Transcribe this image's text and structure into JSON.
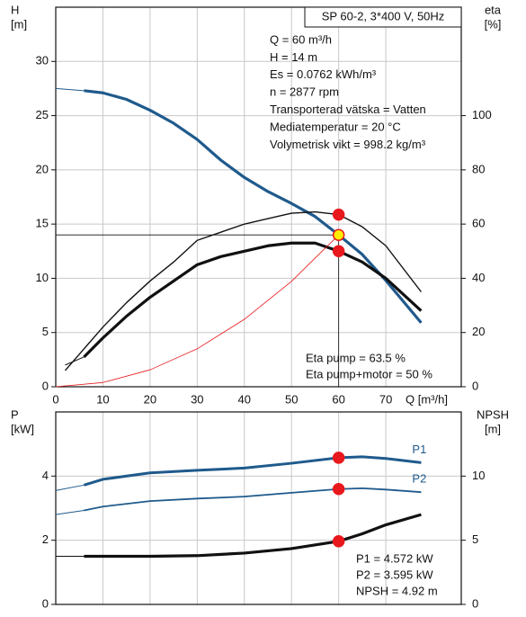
{
  "chart_data": [
    {
      "type": "line",
      "box_title": "SP 60-2, 3*400 V, 50Hz",
      "y_label": [
        "H",
        "[m]"
      ],
      "y2_label": [
        "eta",
        "[%]"
      ],
      "x_label": "Q [m³/h]",
      "xlim": [
        0,
        86
      ],
      "xticks": [
        0,
        10,
        20,
        30,
        40,
        50,
        60,
        70
      ],
      "ylim": [
        0,
        35
      ],
      "yticks": [
        0,
        5,
        10,
        15,
        20,
        25,
        30
      ],
      "y2lim": [
        0,
        140
      ],
      "y2ticks": [
        0,
        20,
        40,
        60,
        80,
        100
      ],
      "grid": true,
      "marker_x": 60,
      "annotations": [
        "Q = 60 m³/h",
        "H = 14 m",
        "Es = 0.0762 kWh/m³",
        "n = 2877 rpm",
        "Transporterad vätska = Vatten",
        "Mediatemperatur = 20 °C",
        "Volymetrisk vikt = 998.2 kg/m³"
      ],
      "annotations_lower": [
        "Eta pump = 63.5 %",
        "Eta pump+motor = 50 %"
      ],
      "series": [
        {
          "color": "#1f5a8c",
          "line_width": 1,
          "x": [
            0,
            6
          ],
          "values": [
            27.5,
            27.3
          ]
        },
        {
          "color": "#1f5a8c",
          "line_width": 3.2,
          "marker_color": "#ffee00",
          "x": [
            6,
            10,
            15,
            20,
            25,
            30,
            35,
            40,
            45,
            50,
            55,
            60,
            65,
            70,
            77.5
          ],
          "values": [
            27.3,
            27.1,
            26.5,
            25.5,
            24.3,
            22.8,
            20.9,
            19.3,
            18.0,
            16.9,
            15.7,
            14.0,
            12.2,
            9.8,
            5.9
          ]
        },
        {
          "color": "#111111",
          "line_width": 1.4,
          "axis": "y2",
          "marker_color": "#e8181c",
          "x": [
            2,
            6,
            10,
            15,
            20,
            25,
            30,
            35,
            40,
            45,
            50,
            55,
            60,
            65,
            70,
            77.5
          ],
          "values": [
            6,
            14,
            22,
            31,
            39,
            46,
            54,
            57,
            60,
            62,
            64,
            64.5,
            63.5,
            59,
            52,
            35
          ]
        },
        {
          "color": "#111111",
          "line_width": 1,
          "axis": "y2",
          "x": [
            2,
            6
          ],
          "values": [
            8,
            11
          ]
        },
        {
          "color": "#111111",
          "line_width": 3.2,
          "axis": "y2",
          "marker_color": "#e8181c",
          "x": [
            6,
            10,
            15,
            20,
            25,
            30,
            35,
            40,
            45,
            50,
            55,
            60,
            65,
            70,
            77.5
          ],
          "values": [
            11,
            18,
            26,
            33,
            39,
            45,
            48,
            50,
            52,
            53,
            53,
            50,
            46,
            40,
            28
          ]
        },
        {
          "color": "#e8181c",
          "line_width": 0.8,
          "x": [
            0,
            10,
            20,
            30,
            40,
            50,
            60
          ],
          "values": [
            0,
            0.39,
            1.56,
            3.5,
            6.22,
            9.72,
            14
          ]
        }
      ]
    },
    {
      "type": "line",
      "y_label": [
        "P",
        "[kW]"
      ],
      "y2_label": [
        "NPSH",
        "[m]"
      ],
      "xlim": [
        0,
        86
      ],
      "xticks": [
        0,
        10,
        20,
        30,
        40,
        50,
        60,
        70
      ],
      "ylim": [
        0,
        6
      ],
      "yticks": [
        0,
        2,
        4
      ],
      "y2lim": [
        0,
        15
      ],
      "y2ticks": [
        0,
        5,
        10
      ],
      "grid": true,
      "marker_x": 60,
      "annotations_lower": [
        "P1 = 4.572 kW",
        "P2 = 3.595 kW",
        "NPSH = 4.92 m"
      ],
      "series": [
        {
          "color": "#1f5a8c",
          "line_width": 1,
          "x": [
            0,
            6
          ],
          "values": [
            3.55,
            3.72
          ]
        },
        {
          "name": "P1",
          "color": "#1f5a8c",
          "line_width": 3,
          "marker_color": "#e8181c",
          "x": [
            6,
            10,
            20,
            30,
            40,
            50,
            60,
            65,
            70,
            77.5
          ],
          "values": [
            3.72,
            3.9,
            4.1,
            4.18,
            4.25,
            4.4,
            4.572,
            4.6,
            4.55,
            4.42
          ]
        },
        {
          "color": "#1f5a8c",
          "line_width": 1,
          "x": [
            0,
            6
          ],
          "values": [
            2.8,
            2.93
          ]
        },
        {
          "name": "P2",
          "color": "#1f5a8c",
          "line_width": 1.8,
          "marker_color": "#e8181c",
          "x": [
            6,
            10,
            20,
            30,
            40,
            50,
            60,
            65,
            70,
            77.5
          ],
          "values": [
            2.93,
            3.05,
            3.22,
            3.3,
            3.36,
            3.48,
            3.595,
            3.62,
            3.58,
            3.5
          ]
        },
        {
          "color": "#111111",
          "line_width": 1,
          "axis": "y2",
          "x": [
            0,
            6
          ],
          "values": [
            3.75,
            3.75
          ]
        },
        {
          "color": "#111111",
          "line_width": 3.2,
          "axis": "y2",
          "marker_color": "#e8181c",
          "x": [
            6,
            20,
            30,
            40,
            50,
            60,
            65,
            70,
            77.5
          ],
          "values": [
            3.75,
            3.75,
            3.8,
            4.0,
            4.35,
            4.92,
            5.5,
            6.2,
            7.0
          ]
        }
      ]
    }
  ]
}
